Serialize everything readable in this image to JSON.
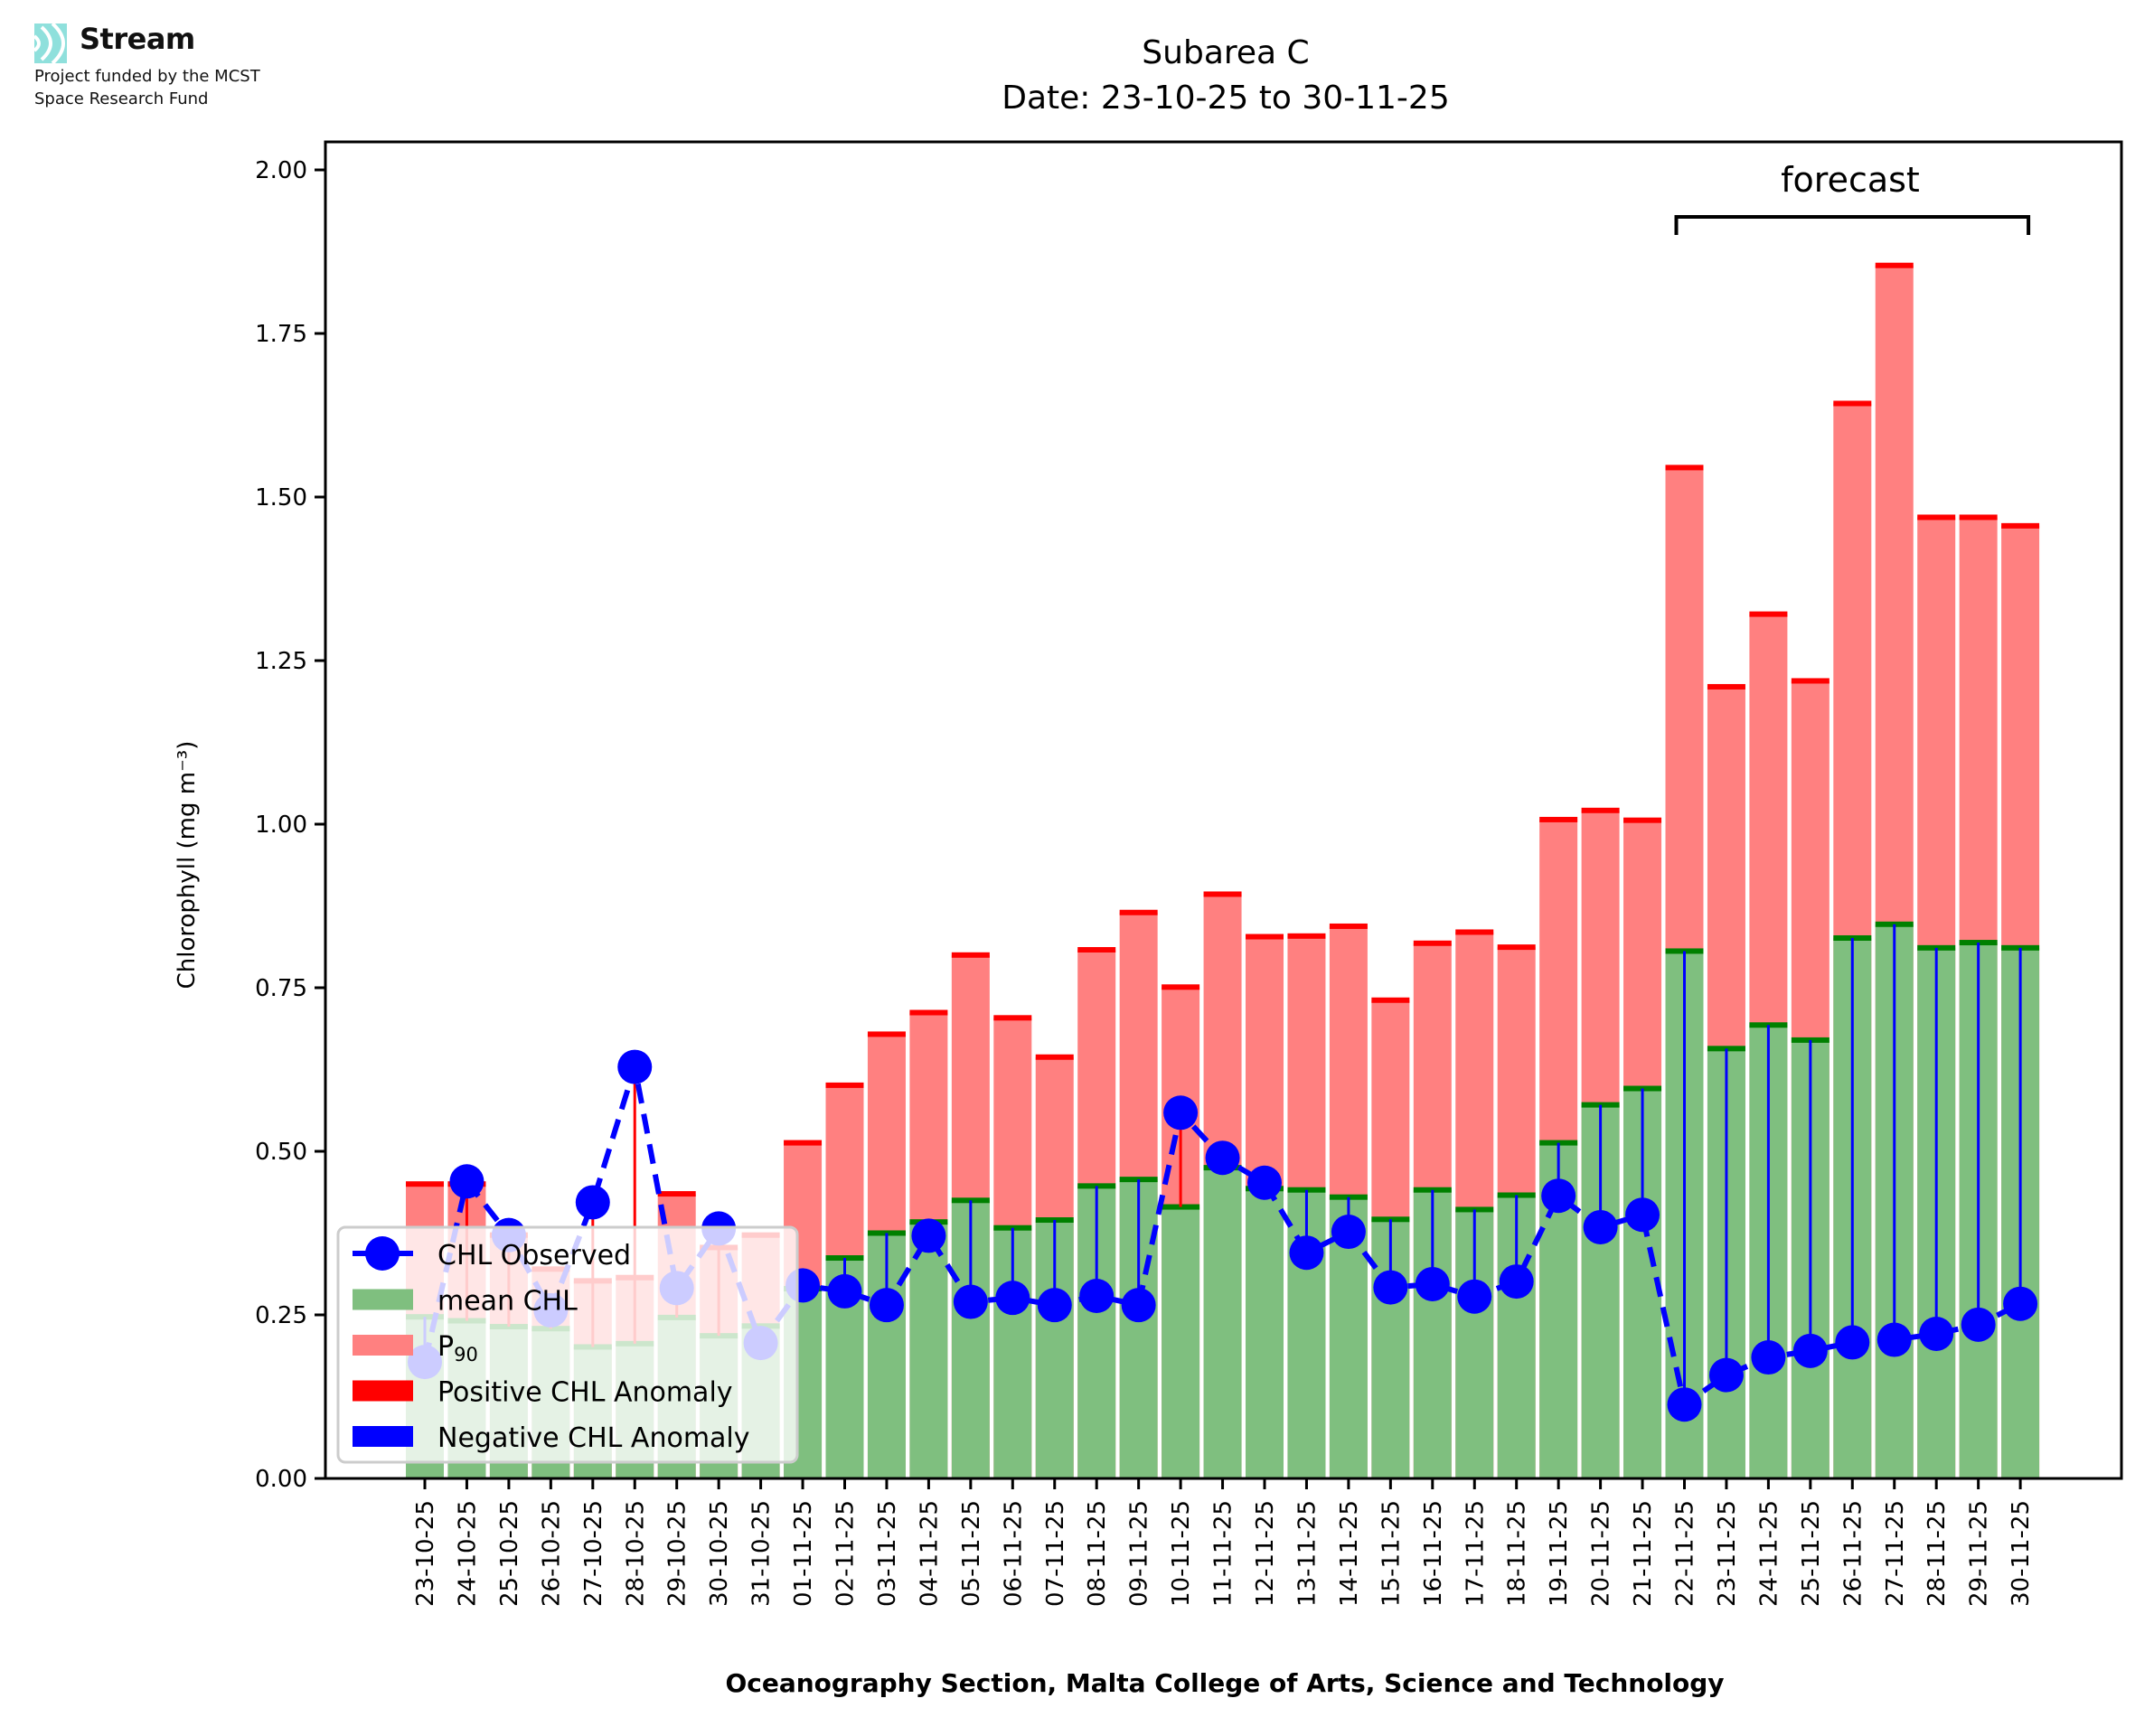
{
  "logo": {
    "name": "Stream",
    "subtitle_line1": "Project funded by the MCST",
    "subtitle_line2": "Space Research Fund",
    "icon": "stream-waves-icon",
    "icon_color": "#8fe0dc"
  },
  "chart_data": {
    "type": "bar",
    "title_line1": "Subarea C",
    "title_line2": "Date: 23-10-25 to 30-11-25",
    "xlabel": "Oceanography Section, Malta College of Arts, Science and Technology",
    "ylabel": "Chlorophyll (mg m⁻³)",
    "ylim": [
      0,
      2.04
    ],
    "yticks": [
      "0.00",
      "0.25",
      "0.50",
      "0.75",
      "1.00",
      "1.25",
      "1.50",
      "1.75",
      "2.00"
    ],
    "ytick_values": [
      0,
      0.25,
      0.5,
      0.75,
      1.0,
      1.25,
      1.5,
      1.75,
      2.0
    ],
    "grid": false,
    "legend_position": "lower-left",
    "annotation": {
      "text": "forecast",
      "from": "22-11-25",
      "to": "30-11-25"
    },
    "colors": {
      "observed": "#0000ff",
      "mean": "#7fbf7f",
      "mean_cap": "#008000",
      "p90": "#ff8080",
      "p90_cap": "#ff0000",
      "positive_anomaly": "#ff0000",
      "negative_anomaly": "#0000ff"
    },
    "legend": [
      {
        "label": "CHL Observed",
        "kind": "line-marker",
        "color": "#0000ff"
      },
      {
        "label": "mean CHL",
        "kind": "patch",
        "color": "#7fbf7f"
      },
      {
        "label": "P",
        "sub": "90",
        "kind": "patch",
        "color": "#ff8080"
      },
      {
        "label": "Positive CHL Anomaly",
        "kind": "patch",
        "color": "#ff0000"
      },
      {
        "label": "Negative CHL Anomaly",
        "kind": "patch",
        "color": "#0000ff"
      }
    ],
    "categories": [
      "23-10-25",
      "24-10-25",
      "25-10-25",
      "26-10-25",
      "27-10-25",
      "28-10-25",
      "29-10-25",
      "30-10-25",
      "31-10-25",
      "01-11-25",
      "02-11-25",
      "03-11-25",
      "04-11-25",
      "05-11-25",
      "06-11-25",
      "07-11-25",
      "08-11-25",
      "09-11-25",
      "10-11-25",
      "11-11-25",
      "12-11-25",
      "13-11-25",
      "14-11-25",
      "15-11-25",
      "16-11-25",
      "17-11-25",
      "18-11-25",
      "19-11-25",
      "20-11-25",
      "21-11-25",
      "22-11-25",
      "23-11-25",
      "24-11-25",
      "25-11-25",
      "26-11-25",
      "27-11-25",
      "28-11-25",
      "29-11-25",
      "30-11-25"
    ],
    "series": [
      {
        "name": "P90",
        "values": [
          0.45,
          0.45,
          0.372,
          0.32,
          0.302,
          0.307,
          0.435,
          0.353,
          0.372,
          0.513,
          0.601,
          0.679,
          0.712,
          0.8,
          0.704,
          0.644,
          0.808,
          0.865,
          0.751,
          0.893,
          0.828,
          0.829,
          0.844,
          0.731,
          0.818,
          0.835,
          0.812,
          1.007,
          1.021,
          1.006,
          1.545,
          1.21,
          1.321,
          1.219,
          1.643,
          1.854,
          1.469,
          1.469,
          1.456
        ]
      },
      {
        "name": "mean CHL",
        "values": [
          0.247,
          0.241,
          0.232,
          0.229,
          0.201,
          0.206,
          0.246,
          0.218,
          0.233,
          0.29,
          0.337,
          0.375,
          0.392,
          0.425,
          0.383,
          0.395,
          0.447,
          0.457,
          0.415,
          0.475,
          0.443,
          0.441,
          0.43,
          0.396,
          0.441,
          0.411,
          0.433,
          0.513,
          0.571,
          0.596,
          0.806,
          0.657,
          0.693,
          0.67,
          0.826,
          0.847,
          0.811,
          0.819,
          0.811
        ]
      },
      {
        "name": "CHL Observed",
        "values": [
          0.178,
          0.454,
          0.372,
          0.257,
          0.422,
          0.629,
          0.291,
          0.382,
          0.207,
          0.295,
          0.286,
          0.265,
          0.371,
          0.27,
          0.276,
          0.265,
          0.279,
          0.265,
          0.559,
          0.49,
          0.452,
          0.345,
          0.377,
          0.292,
          0.297,
          0.278,
          0.301,
          0.432,
          0.384,
          0.403,
          0.113,
          0.158,
          0.185,
          0.195,
          0.208,
          0.212,
          0.221,
          0.235,
          0.267
        ]
      }
    ]
  }
}
